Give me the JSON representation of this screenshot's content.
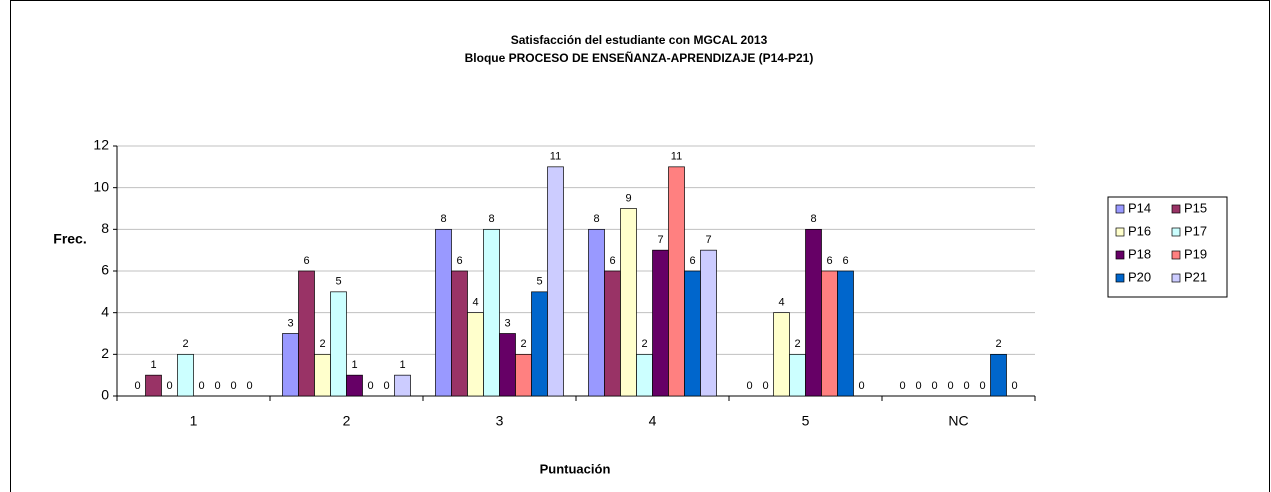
{
  "chart_data": {
    "type": "bar",
    "title": "Satisfacción del estudiante con MGCAL 2013",
    "subtitle": "Bloque PROCESO DE ENSEÑANZA-APRENDIZAJE (P14-P21)",
    "x_label": "Puntuación",
    "y_label": "Frec.",
    "categories": [
      "1",
      "2",
      "3",
      "4",
      "5",
      "NC"
    ],
    "series": [
      {
        "name": "P14",
        "color": "#9999ff",
        "values": [
          0,
          3,
          8,
          8,
          0,
          0
        ]
      },
      {
        "name": "P15",
        "color": "#993366",
        "values": [
          1,
          6,
          6,
          6,
          0,
          0
        ]
      },
      {
        "name": "P16",
        "color": "#ffffcc",
        "values": [
          0,
          2,
          4,
          9,
          4,
          0
        ]
      },
      {
        "name": "P17",
        "color": "#ccffff",
        "values": [
          2,
          5,
          8,
          2,
          2,
          0
        ]
      },
      {
        "name": "P18",
        "color": "#660066",
        "values": [
          0,
          1,
          3,
          7,
          8,
          0
        ]
      },
      {
        "name": "P19",
        "color": "#ff8080",
        "values": [
          0,
          0,
          2,
          11,
          6,
          0
        ]
      },
      {
        "name": "P20",
        "color": "#0066cc",
        "values": [
          0,
          0,
          5,
          6,
          6,
          2
        ]
      },
      {
        "name": "P21",
        "color": "#ccccff",
        "values": [
          0,
          1,
          11,
          7,
          0,
          0
        ]
      }
    ],
    "ylim": [
      0,
      12
    ],
    "yticks": [
      0,
      2,
      4,
      6,
      8,
      10,
      12
    ],
    "grid": true,
    "legend": "right"
  }
}
